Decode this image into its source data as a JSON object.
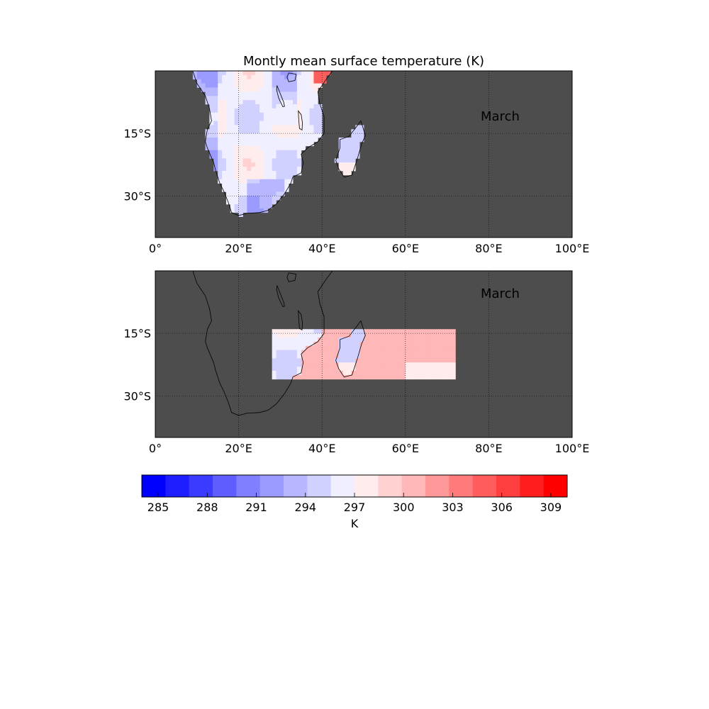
{
  "title": "Montly mean surface temperature (K)",
  "colors": {
    "background": "#4d4d4d",
    "grid": "#000000",
    "coastline": "#000000"
  },
  "panels": [
    {
      "id": "full-domain",
      "annotation": "March",
      "extent": {
        "lon": [
          0,
          100
        ],
        "lat": [
          -40,
          0
        ]
      },
      "data_box": {
        "lon": [
          8,
          100
        ],
        "lat": [
          -35,
          0
        ]
      }
    },
    {
      "id": "subregion",
      "annotation": "March",
      "extent": {
        "lon": [
          0,
          100
        ],
        "lat": [
          -40,
          0
        ]
      },
      "data_box": {
        "lon": [
          28,
          72
        ],
        "lat": [
          -26,
          -14
        ]
      }
    }
  ],
  "x_tick_labels": [
    "0°",
    "20°E",
    "40°E",
    "60°E",
    "80°E",
    "100°E"
  ],
  "y_tick_labels": [
    "15°S",
    "30°S"
  ],
  "x_ticks": [
    0,
    20,
    40,
    60,
    80,
    100
  ],
  "y_ticks": [
    -15,
    -30
  ],
  "colorbar": {
    "label": "K",
    "min": 284,
    "max": 310,
    "step": 1.5,
    "tick_values": [
      285,
      288,
      291,
      294,
      297,
      300,
      303,
      306,
      309
    ],
    "tick_labels": [
      "285",
      "288",
      "291",
      "294",
      "297",
      "300",
      "303",
      "306",
      "309"
    ],
    "colors": [
      "#0000ff",
      "#1d1dff",
      "#3b3bff",
      "#5e5eff",
      "#7f7fff",
      "#9b9bff",
      "#b7b7ff",
      "#d1d1ff",
      "#efefff",
      "#ffeded",
      "#ffd1d1",
      "#ffb7b7",
      "#ff9999",
      "#ff7b7b",
      "#ff5d5d",
      "#ff3f3f",
      "#ff1d1d",
      "#ff0000"
    ]
  }
}
